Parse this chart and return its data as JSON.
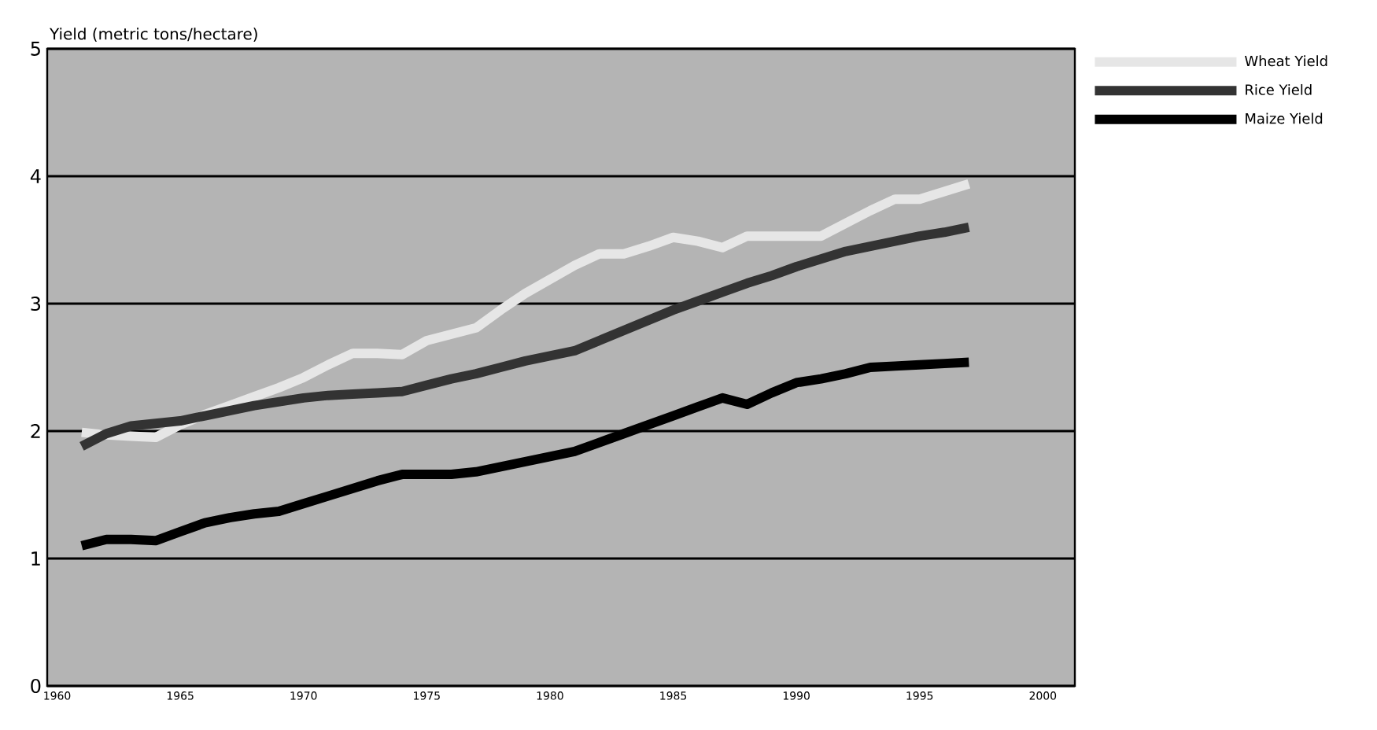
{
  "chart_data": {
    "type": "line",
    "ylabel": "Yield (metric tons/hectare)",
    "x": [
      1961,
      1962,
      1963,
      1964,
      1965,
      1966,
      1967,
      1968,
      1969,
      1970,
      1971,
      1972,
      1973,
      1974,
      1975,
      1976,
      1977,
      1978,
      1979,
      1980,
      1981,
      1982,
      1983,
      1984,
      1985,
      1986,
      1987,
      1988,
      1989,
      1990,
      1991,
      1992,
      1993,
      1994,
      1995,
      1996,
      1997
    ],
    "series": [
      {
        "name": "Wheat Yield",
        "color": "#e6e6e6",
        "values": [
          1.99,
          1.97,
          1.96,
          1.95,
          2.05,
          2.13,
          2.2,
          2.27,
          2.34,
          2.42,
          2.52,
          2.61,
          2.61,
          2.6,
          2.71,
          2.76,
          2.81,
          2.95,
          3.08,
          3.19,
          3.3,
          3.39,
          3.39,
          3.45,
          3.52,
          3.49,
          3.44,
          3.53,
          3.53,
          3.53,
          3.53,
          3.63,
          3.73,
          3.82,
          3.82,
          3.88,
          3.94
        ]
      },
      {
        "name": "Rice Yield",
        "color": "#333333",
        "values": [
          1.88,
          1.98,
          2.04,
          2.06,
          2.08,
          2.12,
          2.16,
          2.2,
          2.23,
          2.26,
          2.28,
          2.29,
          2.3,
          2.31,
          2.36,
          2.41,
          2.45,
          2.5,
          2.55,
          2.59,
          2.63,
          2.71,
          2.79,
          2.87,
          2.95,
          3.02,
          3.09,
          3.16,
          3.22,
          3.29,
          3.35,
          3.41,
          3.45,
          3.49,
          3.53,
          3.56,
          3.6
        ]
      },
      {
        "name": "Maize Yield",
        "color": "#000000",
        "values": [
          1.1,
          1.15,
          1.15,
          1.14,
          1.21,
          1.28,
          1.32,
          1.35,
          1.37,
          1.43,
          1.49,
          1.55,
          1.61,
          1.66,
          1.66,
          1.66,
          1.68,
          1.72,
          1.76,
          1.8,
          1.84,
          1.91,
          1.98,
          2.05,
          2.12,
          2.19,
          2.26,
          2.21,
          2.3,
          2.38,
          2.41,
          2.45,
          2.5,
          2.51,
          2.52,
          2.53,
          2.54
        ]
      }
    ],
    "xlim": [
      1959.6,
      2001.3
    ],
    "xticks": [
      1960,
      1965,
      1970,
      1975,
      1980,
      1985,
      1990,
      1995,
      2000
    ],
    "ylim": [
      0,
      5
    ],
    "yticks": [
      0,
      1,
      2,
      3,
      4,
      5
    ],
    "grid": "y",
    "legend": "top right",
    "marker": "none",
    "line_style": "solid"
  }
}
